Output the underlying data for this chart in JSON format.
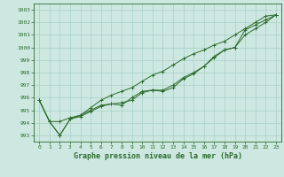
{
  "xlabel": "Graphe pression niveau de la mer (hPa)",
  "background_color": "#cce8e0",
  "grid_color": "#a8cfc8",
  "line_color": "#2d6b2d",
  "xlim": [
    -0.5,
    23.5
  ],
  "ylim": [
    992.5,
    1003.5
  ],
  "yticks": [
    993,
    994,
    995,
    996,
    997,
    998,
    999,
    1000,
    1001,
    1002,
    1003
  ],
  "xticks": [
    0,
    1,
    2,
    3,
    4,
    5,
    6,
    7,
    8,
    9,
    10,
    11,
    12,
    13,
    14,
    15,
    16,
    17,
    18,
    19,
    20,
    21,
    22,
    23
  ],
  "line1_x": [
    0,
    1,
    2,
    3,
    4,
    5,
    6,
    7,
    8,
    9,
    10,
    11,
    12,
    13,
    14,
    15,
    16,
    17,
    18,
    19,
    20,
    21,
    22,
    23
  ],
  "line1_y": [
    995.8,
    994.1,
    993.0,
    994.3,
    994.5,
    994.9,
    995.3,
    995.5,
    995.4,
    996.0,
    996.5,
    996.6,
    996.5,
    996.8,
    997.5,
    997.9,
    998.5,
    999.2,
    999.8,
    1000.0,
    1001.4,
    1001.8,
    1002.2,
    1002.6
  ],
  "line2_x": [
    0,
    1,
    2,
    3,
    4,
    5,
    6,
    7,
    8,
    9,
    10,
    11,
    12,
    13,
    14,
    15,
    16,
    17,
    18,
    19,
    20,
    21,
    22,
    23
  ],
  "line2_y": [
    995.8,
    994.1,
    994.1,
    994.4,
    994.6,
    995.0,
    995.4,
    995.5,
    995.6,
    995.8,
    996.4,
    996.6,
    996.6,
    997.0,
    997.6,
    998.0,
    998.5,
    999.3,
    999.8,
    1000.0,
    1001.0,
    1001.5,
    1002.0,
    1002.6
  ],
  "line3_x": [
    0,
    1,
    2,
    3,
    4,
    5,
    6,
    7,
    8,
    9,
    10,
    11,
    12,
    13,
    14,
    15,
    16,
    17,
    18,
    19,
    20,
    21,
    22,
    23
  ],
  "line3_y": [
    995.8,
    994.1,
    993.0,
    994.3,
    994.6,
    995.2,
    995.8,
    996.2,
    996.5,
    996.8,
    997.3,
    997.8,
    998.1,
    998.6,
    999.1,
    999.5,
    999.8,
    1000.2,
    1000.5,
    1001.0,
    1001.5,
    1002.0,
    1002.5,
    1002.6
  ],
  "marker": "+",
  "lw": 0.7,
  "ms": 3.0
}
